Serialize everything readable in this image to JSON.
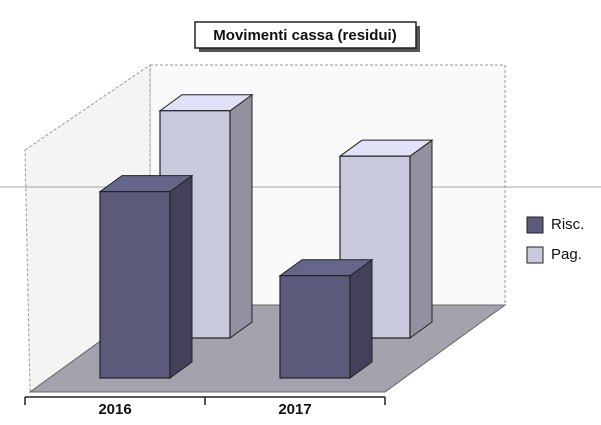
{
  "chart_data": {
    "type": "bar3d",
    "title": "Movimenti cassa (residui)",
    "categories": [
      "2016",
      "2017"
    ],
    "series": [
      {
        "name": "Risc.",
        "color": "#5b5a7b",
        "values": [
          82,
          45
        ]
      },
      {
        "name": "Pag.",
        "color": "#c9c9dd",
        "values": [
          100,
          80
        ]
      }
    ],
    "ylim": [
      0,
      110
    ],
    "legend": "right"
  }
}
